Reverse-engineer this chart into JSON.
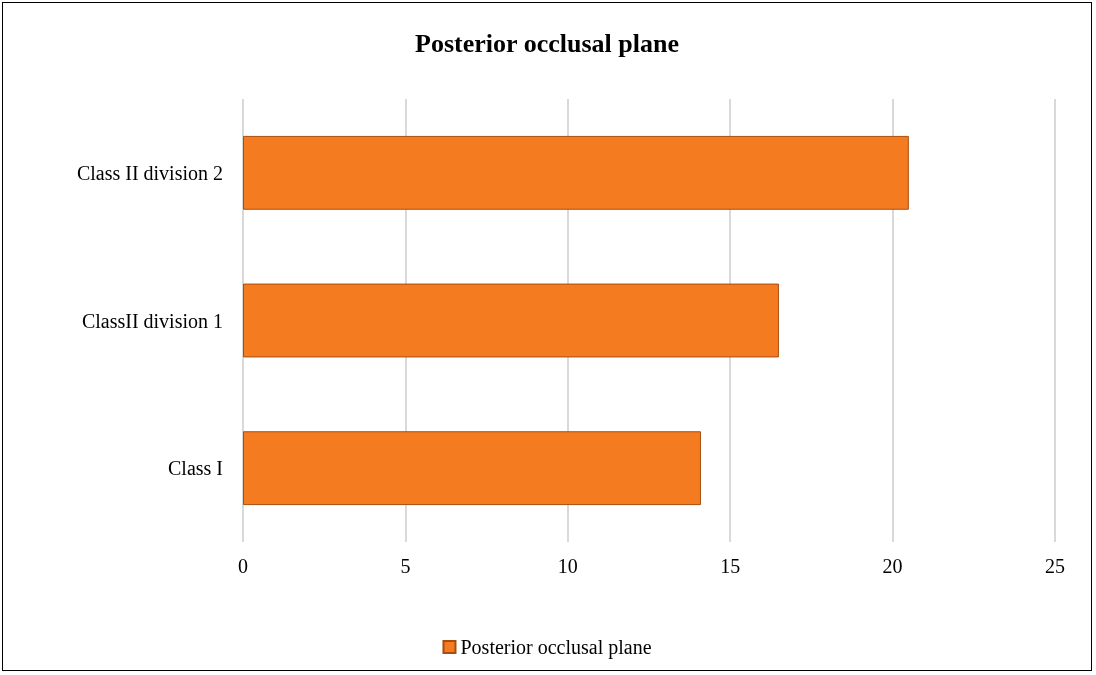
{
  "chart_data": {
    "type": "bar",
    "orientation": "horizontal",
    "title": "Posterior occlusal plane",
    "categories": [
      "Class II division 2",
      "ClassII division 1",
      "Class I"
    ],
    "series": [
      {
        "name": "Posterior occlusal plane",
        "color": "#f47b20",
        "values": [
          20.5,
          16.5,
          14.1
        ]
      }
    ],
    "xlim": [
      0,
      25
    ],
    "xticks": [
      0,
      5,
      10,
      15,
      20,
      25
    ],
    "grid": "x",
    "legend": "bottom"
  }
}
